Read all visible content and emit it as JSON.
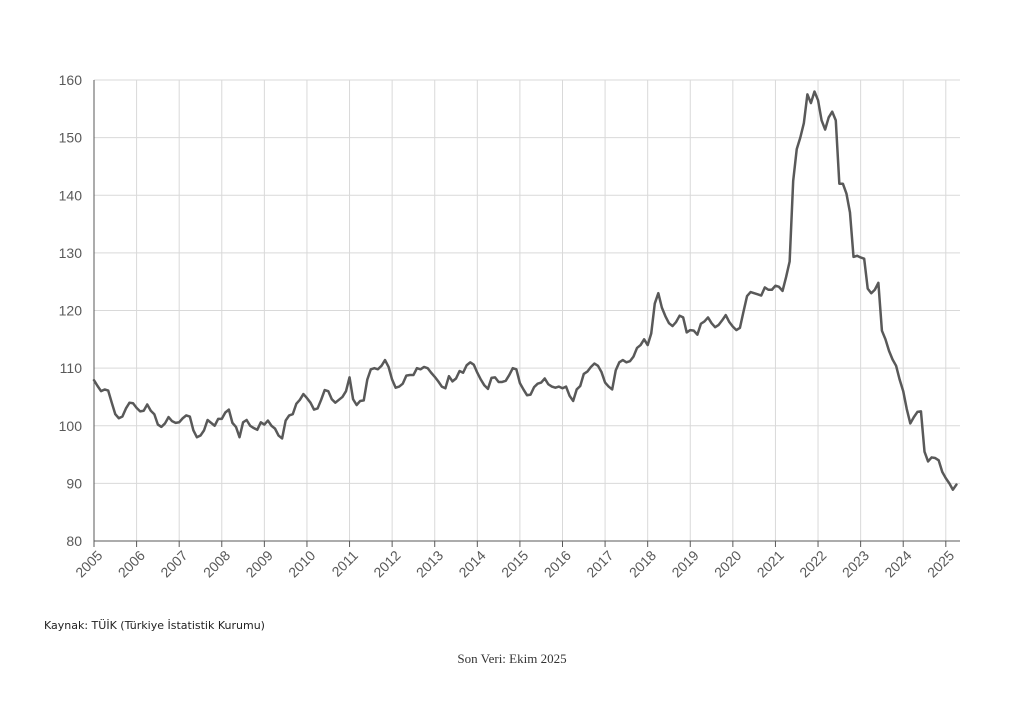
{
  "chart_data": {
    "type": "line",
    "title": "",
    "xlabel": "",
    "ylabel": "",
    "ylim": [
      80,
      160
    ],
    "yticks": [
      80,
      90,
      100,
      110,
      120,
      130,
      140,
      150,
      160
    ],
    "xticks": [
      "2005",
      "2006",
      "2007",
      "2008",
      "2009",
      "2010",
      "2011",
      "2012",
      "2013",
      "2014",
      "2015",
      "2016",
      "2017",
      "2018",
      "2019",
      "2020",
      "2021",
      "2022",
      "2023",
      "2024",
      "2025"
    ],
    "grid": true,
    "line_color": "#595959",
    "x_start": "2005-01",
    "x_end": "2025-10",
    "series": [
      {
        "values": [
          107.9,
          106.9,
          106.0,
          106.3,
          106.1,
          104.0,
          102.0,
          101.3,
          101.6,
          103.0,
          104.0,
          103.9,
          103.1,
          102.5,
          102.6,
          103.7,
          102.6,
          102.0,
          100.2,
          99.8,
          100.4,
          101.5,
          100.8,
          100.5,
          100.6,
          101.3,
          101.8,
          101.6,
          99.2,
          98.0,
          98.3,
          99.2,
          101.0,
          100.5,
          100.0,
          101.2,
          101.2,
          102.3,
          102.8,
          100.5,
          99.8,
          98.0,
          100.6,
          101.0,
          100.0,
          99.6,
          99.3,
          100.6,
          100.2,
          100.9,
          100.0,
          99.5,
          98.3,
          97.8,
          100.9,
          101.8,
          102.0,
          103.8,
          104.5,
          105.5,
          104.8,
          104.0,
          102.8,
          103.0,
          104.5,
          106.2,
          106.0,
          104.6,
          104.0,
          104.5,
          105.0,
          106.0,
          108.4,
          104.6,
          103.6,
          104.3,
          104.4,
          108.0,
          109.8,
          110.0,
          109.8,
          110.4,
          111.4,
          110.2,
          108.0,
          106.6,
          106.8,
          107.3,
          108.7,
          108.8,
          108.8,
          110.0,
          109.8,
          110.2,
          110.0,
          109.2,
          108.5,
          107.7,
          106.8,
          106.5,
          108.6,
          107.7,
          108.2,
          109.5,
          109.2,
          110.5,
          111.0,
          110.6,
          109.2,
          108.0,
          107.0,
          106.4,
          108.3,
          108.4,
          107.6,
          107.6,
          107.8,
          108.8,
          110.0,
          109.8,
          107.4,
          106.3,
          105.3,
          105.4,
          106.7,
          107.3,
          107.5,
          108.2,
          107.2,
          106.8,
          106.6,
          106.8,
          106.5,
          106.8,
          105.2,
          104.3,
          106.3,
          106.9,
          109.0,
          109.4,
          110.2,
          110.8,
          110.4,
          109.3,
          107.5,
          106.8,
          106.3,
          109.6,
          111.0,
          111.4,
          111.0,
          111.2,
          112.0,
          113.5,
          114.0,
          115.0,
          114.0,
          116.0,
          121.2,
          123.0,
          120.5,
          119.0,
          117.8,
          117.3,
          118.0,
          119.1,
          118.8,
          116.2,
          116.6,
          116.5,
          115.8,
          117.7,
          118.1,
          118.8,
          117.8,
          117.1,
          117.5,
          118.3,
          119.2,
          118.0,
          117.2,
          116.6,
          117.0,
          119.8,
          122.5,
          123.2,
          123.0,
          122.8,
          122.6,
          124.0,
          123.6,
          123.6,
          124.3,
          124.1,
          123.4,
          125.8,
          128.5,
          142.5,
          148.0,
          150.0,
          152.5,
          157.5,
          156.0,
          158.0,
          156.5,
          153.0,
          151.4,
          153.5,
          154.5,
          153.0,
          142.0,
          142.0,
          140.3,
          137.0,
          129.3,
          129.5,
          129.2,
          129.0,
          123.8,
          123.0,
          123.6,
          124.8,
          116.5,
          115.0,
          113.0,
          111.5,
          110.4,
          108.0,
          106.0,
          102.9,
          100.4,
          101.5,
          102.4,
          102.5,
          95.5,
          93.8,
          94.5,
          94.4,
          94.0,
          92.0,
          90.9,
          90.0,
          88.9,
          89.8
        ]
      }
    ]
  },
  "footer": {
    "source": "Kaynak: TÜİK (Türkiye İstatistik Kurumu)",
    "last_data": "Son Veri: Ekim 2025"
  }
}
